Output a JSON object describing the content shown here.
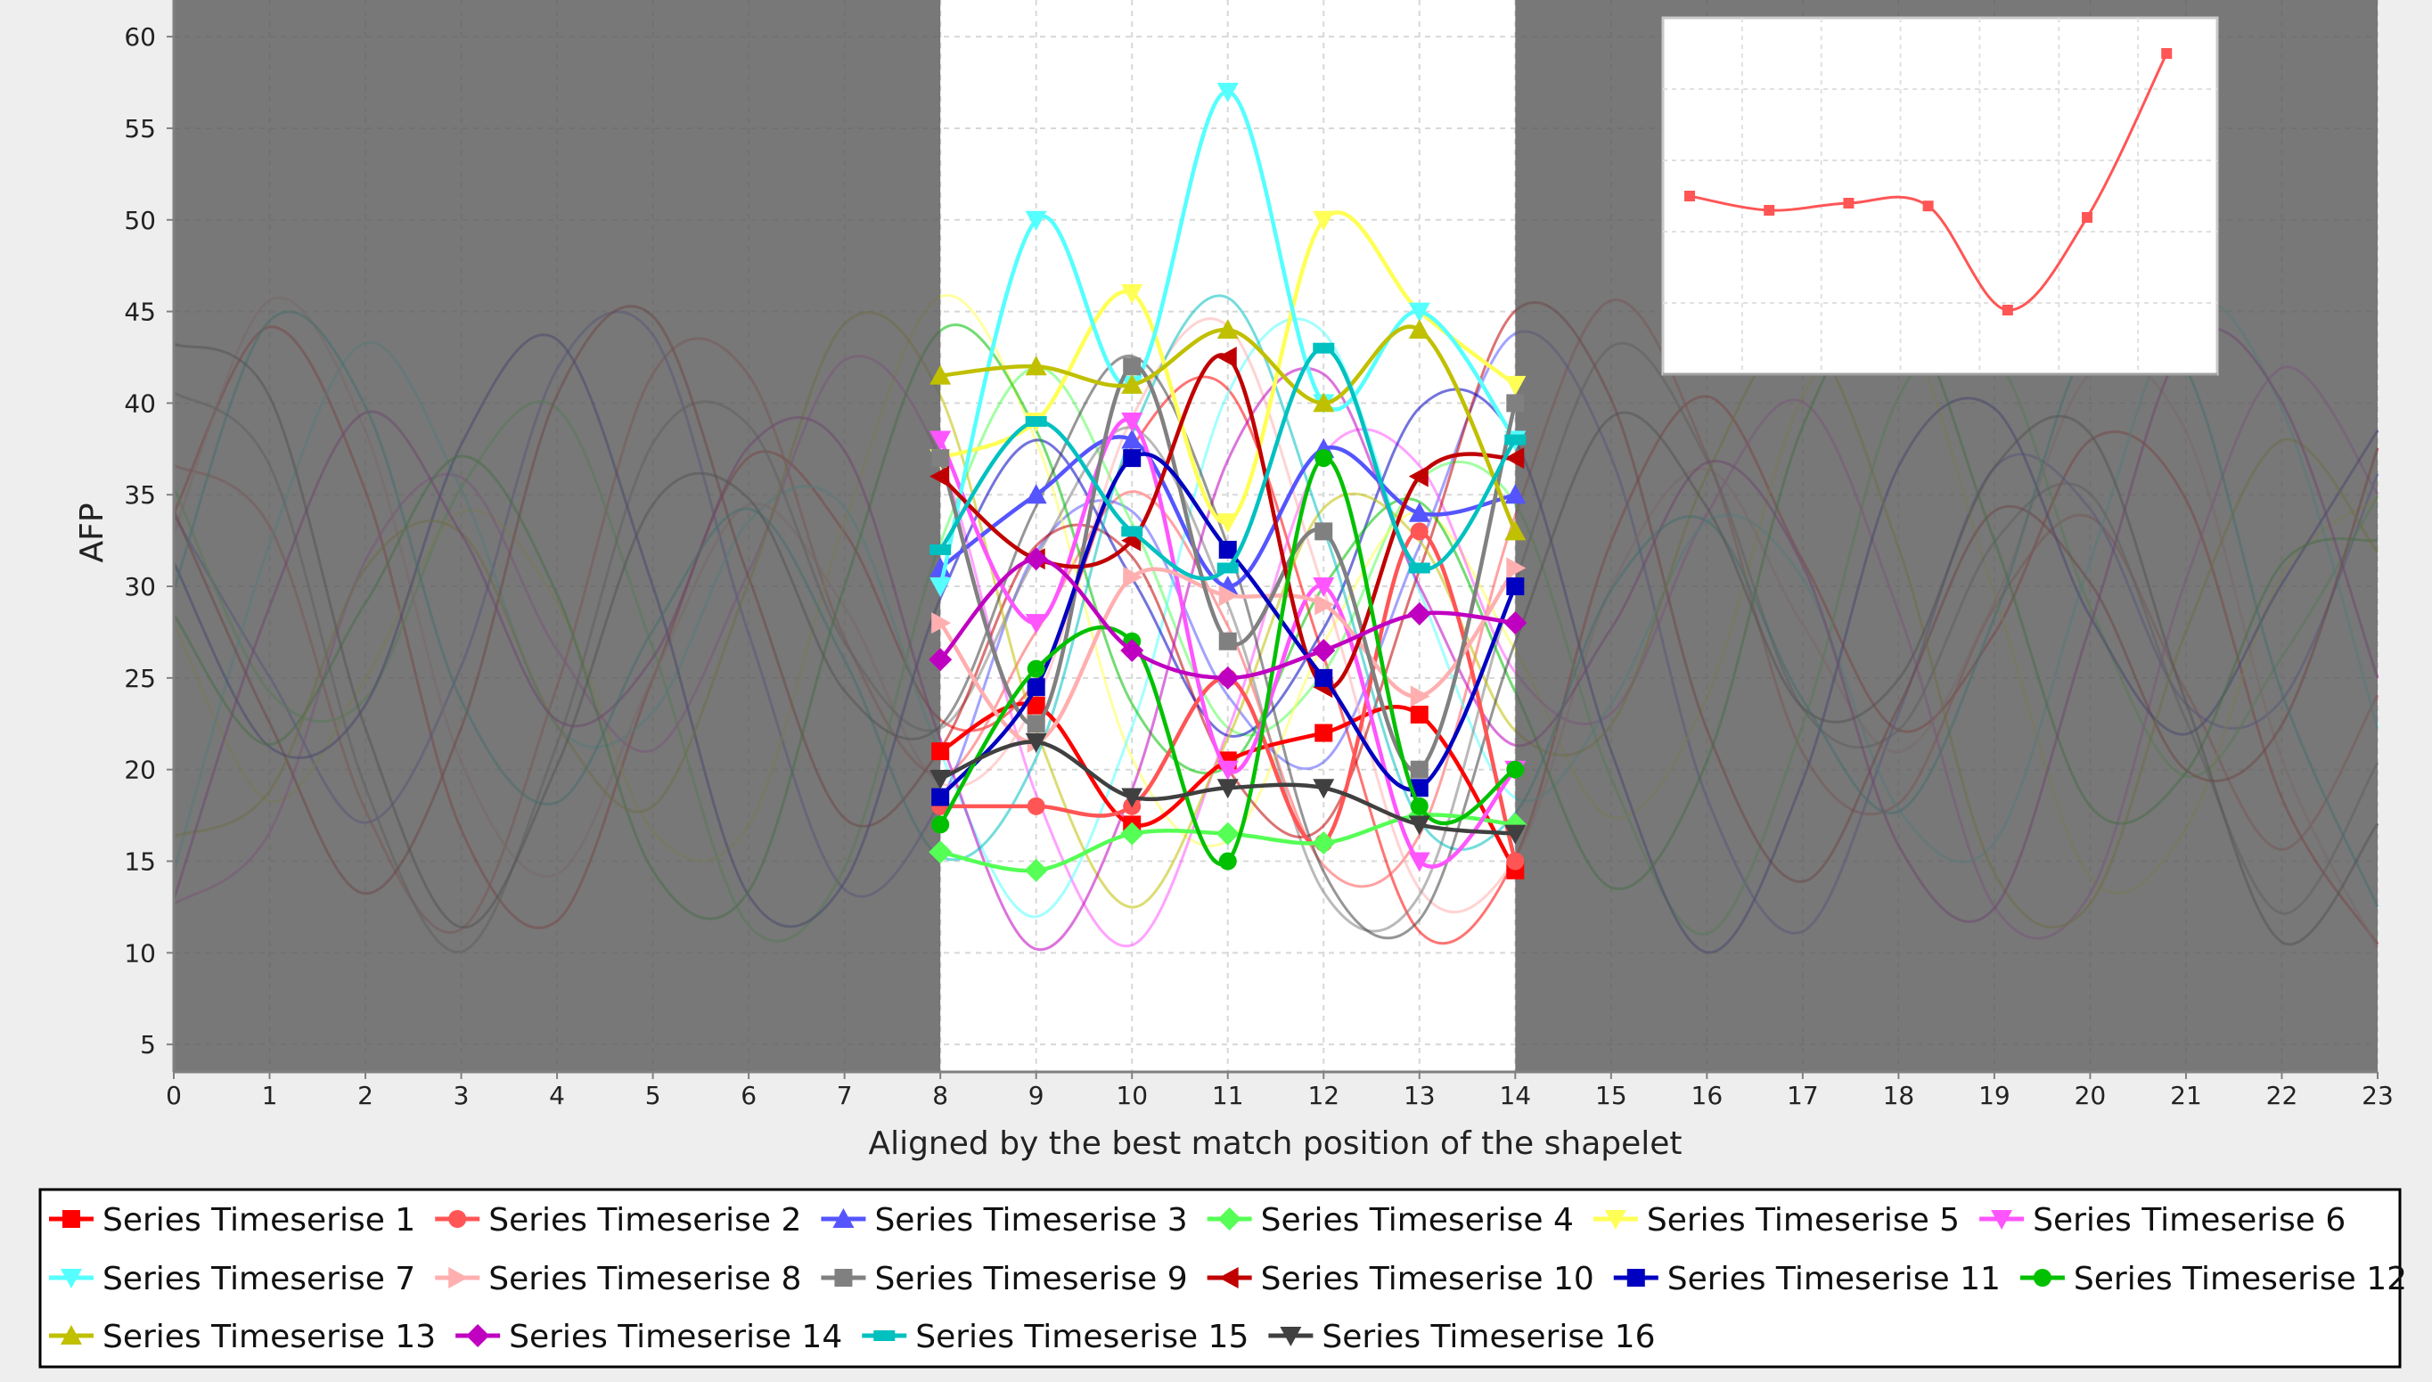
{
  "chart_data": [
    {
      "type": "line",
      "xlabel": "Aligned by the best match position of the shapelet",
      "ylabel": "AFP",
      "xlim": [
        0,
        23
      ],
      "ylim": [
        3.5,
        62
      ],
      "x_ticks": [
        "0",
        "1",
        "2",
        "3",
        "4",
        "5",
        "6",
        "7",
        "8",
        "9",
        "10",
        "11",
        "12",
        "13",
        "14",
        "15",
        "16",
        "17",
        "18",
        "19",
        "20",
        "21",
        "22",
        "23"
      ],
      "y_ticks": [
        "5",
        "10",
        "15",
        "20",
        "25",
        "30",
        "35",
        "40",
        "45",
        "50",
        "55",
        "60"
      ],
      "shaded_regions": [
        [
          0,
          8
        ],
        [
          14,
          23
        ]
      ],
      "grid": true,
      "legend_position": "bottom",
      "series": [
        {
          "name": "Series Timeserise 1",
          "color": "#ff0000",
          "marker": "square",
          "x": [
            8,
            9,
            10,
            11,
            12,
            13,
            14
          ],
          "values": [
            21,
            23.5,
            17,
            20.5,
            22,
            23,
            14.5
          ]
        },
        {
          "name": "Series Timeserise 2",
          "color": "#ff5555",
          "marker": "circle",
          "x": [
            8,
            9,
            10,
            11,
            12,
            13,
            14
          ],
          "values": [
            18,
            18,
            18,
            25,
            16,
            33,
            15
          ]
        },
        {
          "name": "Series Timeserise 3",
          "color": "#5555ff",
          "marker": "triangle-up",
          "x": [
            8,
            9,
            10,
            11,
            12,
            13,
            14
          ],
          "values": [
            31,
            35,
            38,
            30,
            37.5,
            34,
            35
          ]
        },
        {
          "name": "Series Timeserise 4",
          "color": "#55ff55",
          "marker": "diamond",
          "x": [
            8,
            9,
            10,
            11,
            12,
            13,
            14
          ],
          "values": [
            15.5,
            14.5,
            16.5,
            16.5,
            16,
            17.5,
            17
          ]
        },
        {
          "name": "Series Timeserise 5",
          "color": "#ffff55",
          "marker": "triangle-down",
          "x": [
            8,
            9,
            10,
            11,
            12,
            13,
            14
          ],
          "values": [
            37,
            39,
            46,
            33.5,
            50,
            45,
            41
          ]
        },
        {
          "name": "Series Timeserise 6",
          "color": "#ff55ff",
          "marker": "triangle-down",
          "x": [
            8,
            9,
            10,
            11,
            12,
            13,
            14
          ],
          "values": [
            38,
            28,
            39,
            20,
            30,
            15,
            20
          ]
        },
        {
          "name": "Series Timeserise 7",
          "color": "#55ffff",
          "marker": "triangle-down",
          "x": [
            8,
            9,
            10,
            11,
            12,
            13,
            14
          ],
          "values": [
            30,
            50,
            41,
            57,
            40,
            45,
            38
          ]
        },
        {
          "name": "Series Timeserise 8",
          "color": "#ffafaf",
          "marker": "triangle-right",
          "x": [
            8,
            9,
            10,
            11,
            12,
            13,
            14
          ],
          "values": [
            28,
            21.5,
            30.5,
            29.5,
            29,
            24,
            31
          ]
        },
        {
          "name": "Series Timeserise 9",
          "color": "#808080",
          "marker": "square",
          "x": [
            8,
            9,
            10,
            11,
            12,
            13,
            14
          ],
          "values": [
            37,
            22.5,
            42,
            27,
            33,
            20,
            40
          ]
        },
        {
          "name": "Series Timeserise 10",
          "color": "#c00000",
          "marker": "triangle-left",
          "x": [
            8,
            9,
            10,
            11,
            12,
            13,
            14
          ],
          "values": [
            36,
            31.5,
            32.5,
            42.5,
            24.5,
            36,
            37
          ]
        },
        {
          "name": "Series Timeserise 11",
          "color": "#0000c0",
          "marker": "square",
          "x": [
            8,
            9,
            10,
            11,
            12,
            13,
            14
          ],
          "values": [
            18.5,
            24.5,
            37,
            32,
            25,
            19,
            30
          ]
        },
        {
          "name": "Series Timeserise 12",
          "color": "#00c000",
          "marker": "circle",
          "x": [
            8,
            9,
            10,
            11,
            12,
            13,
            14
          ],
          "values": [
            17,
            25.5,
            27,
            15,
            37,
            18,
            20
          ]
        },
        {
          "name": "Series Timeserise 13",
          "color": "#c0c000",
          "marker": "triangle-up",
          "x": [
            8,
            9,
            10,
            11,
            12,
            13,
            14
          ],
          "values": [
            41.5,
            42,
            41,
            44,
            40,
            44,
            33
          ]
        },
        {
          "name": "Series Timeserise 14",
          "color": "#c000c0",
          "marker": "diamond",
          "x": [
            8,
            9,
            10,
            11,
            12,
            13,
            14
          ],
          "values": [
            26,
            31.5,
            26.5,
            25,
            26.5,
            28.5,
            28
          ]
        },
        {
          "name": "Series Timeserise 15",
          "color": "#00c0c0",
          "marker": "rect",
          "x": [
            8,
            9,
            10,
            11,
            12,
            13,
            14
          ],
          "values": [
            32,
            39,
            33,
            31,
            43,
            31,
            38
          ]
        },
        {
          "name": "Series Timeserise 16",
          "color": "#404040",
          "marker": "triangle-down",
          "x": [
            8,
            9,
            10,
            11,
            12,
            13,
            14
          ],
          "values": [
            19.5,
            21.5,
            18.5,
            19,
            19,
            17,
            16.5
          ]
        }
      ]
    },
    {
      "type": "line",
      "grid": true,
      "position": "top-right inset",
      "series": [
        {
          "color": "#ff5555",
          "marker": "square",
          "x": [
            1,
            2,
            3,
            4,
            5,
            6,
            7
          ],
          "values": [
            50.5,
            49.5,
            50,
            49.8,
            42.5,
            49,
            60.5
          ]
        }
      ]
    }
  ]
}
